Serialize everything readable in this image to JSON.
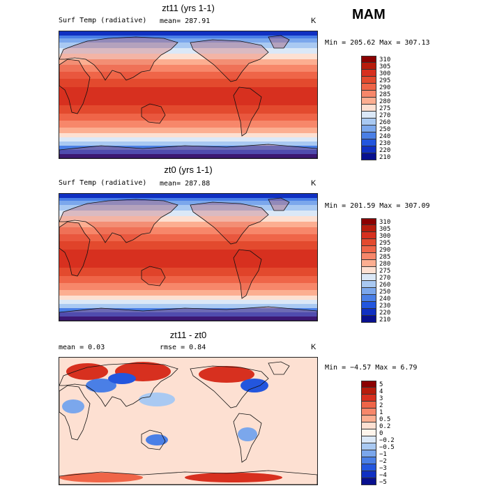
{
  "season": "MAM",
  "panels": [
    {
      "title": "zt11 (yrs 1-1)",
      "variable": "Surf Temp (radiative)",
      "mean_label": "mean= 287.91",
      "unit": "K",
      "minmax": "Min = 205.62 Max = 307.13"
    },
    {
      "title": "zt0 (yrs 1-1)",
      "variable": "Surf Temp (radiative)",
      "mean_label": "mean= 287.88",
      "unit": "K",
      "minmax": "Min = 201.59 Max = 307.09"
    },
    {
      "title": "zt11 - zt0",
      "mean_label": "mean =    0.03",
      "rmse_label": "rmse =    0.84",
      "unit": "K",
      "minmax": "Min =  −4.57 Max =    6.79"
    }
  ],
  "chart_data": [
    {
      "type": "heatmap",
      "title": "zt11 (yrs 1-1)",
      "variable": "Surf Temp (radiative)",
      "units": "K",
      "mean": 287.91,
      "min": 205.62,
      "max": 307.13,
      "levels": [
        "310",
        "305",
        "300",
        "295",
        "290",
        "285",
        "280",
        "275",
        "270",
        "260",
        "250",
        "240",
        "230",
        "220",
        "210"
      ],
      "colors": [
        "#8b0000",
        "#b71c0c",
        "#d7301f",
        "#e34a2e",
        "#ef6548",
        "#f7876a",
        "#fcae91",
        "#fde0d2",
        "#dbe8f7",
        "#a9c9f2",
        "#7ba7ec",
        "#4a7fe6",
        "#2356de",
        "#1030c2",
        "#08108f"
      ]
    },
    {
      "type": "heatmap",
      "title": "zt0 (yrs 1-1)",
      "variable": "Surf Temp (radiative)",
      "units": "K",
      "mean": 287.88,
      "min": 201.59,
      "max": 307.09,
      "levels": [
        "310",
        "305",
        "300",
        "295",
        "290",
        "285",
        "280",
        "275",
        "270",
        "260",
        "250",
        "240",
        "230",
        "220",
        "210"
      ],
      "colors": [
        "#8b0000",
        "#b71c0c",
        "#d7301f",
        "#e34a2e",
        "#ef6548",
        "#f7876a",
        "#fcae91",
        "#fde0d2",
        "#dbe8f7",
        "#a9c9f2",
        "#7ba7ec",
        "#4a7fe6",
        "#2356de",
        "#1030c2",
        "#08108f"
      ]
    },
    {
      "type": "heatmap",
      "title": "zt11 - zt0",
      "units": "K",
      "mean": 0.03,
      "rmse": 0.84,
      "min": -4.57,
      "max": 6.79,
      "levels": [
        "5",
        "4",
        "3",
        "2",
        "1",
        "0.5",
        "0.2",
        "0",
        "−0.2",
        "−0.5",
        "−1",
        "−2",
        "−3",
        "−4",
        "−5"
      ],
      "colors": [
        "#8b0000",
        "#b71c0c",
        "#d7301f",
        "#ef6548",
        "#f7876a",
        "#fcae91",
        "#fde0d2",
        "#fff5ec",
        "#dbe8f7",
        "#a9c9f2",
        "#7ba7ec",
        "#4a7fe6",
        "#2356de",
        "#1030c2",
        "#08108f"
      ]
    }
  ]
}
